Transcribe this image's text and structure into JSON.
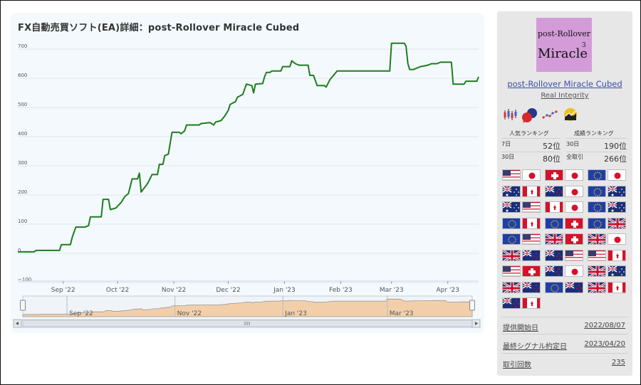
{
  "chart_title": "FX自動売買ソフト(EA)詳細：post-Rollover Miracle Cubed",
  "chart_data": {
    "type": "line",
    "title": "FX自動売買ソフト(EA)詳細：post-Rollover Miracle Cubed",
    "y_ticks": [
      "700",
      "600",
      "500",
      "400",
      "300",
      "200",
      "100",
      "0",
      "−100"
    ],
    "ylim": [
      -100,
      730
    ],
    "x_ticks": [
      "Sep '22",
      "Oct '22",
      "Nov '22",
      "Dec '22",
      "Jan '23",
      "Feb '23",
      "Mar '23",
      "Apr '23"
    ],
    "navigator_ticks": [
      "Sep '22",
      "Nov '22",
      "Jan '23",
      "Mar '23"
    ],
    "grid": true,
    "series": [
      {
        "color": "#1e7d1e",
        "points": [
          [
            "2022-08-07",
            5
          ],
          [
            "2022-08-16",
            5
          ],
          [
            "2022-08-17",
            10
          ],
          [
            "2022-08-30",
            10
          ],
          [
            "2022-08-31",
            30
          ],
          [
            "2022-09-05",
            30
          ],
          [
            "2022-09-06",
            55
          ],
          [
            "2022-09-08",
            90
          ],
          [
            "2022-09-13",
            90
          ],
          [
            "2022-09-15",
            95
          ],
          [
            "2022-09-16",
            125
          ],
          [
            "2022-09-22",
            125
          ],
          [
            "2022-09-23",
            185
          ],
          [
            "2022-09-26",
            185
          ],
          [
            "2022-09-27",
            150
          ],
          [
            "2022-09-30",
            155
          ],
          [
            "2022-10-03",
            175
          ],
          [
            "2022-10-05",
            195
          ],
          [
            "2022-10-07",
            205
          ],
          [
            "2022-10-09",
            255
          ],
          [
            "2022-10-12",
            255
          ],
          [
            "2022-10-13",
            275
          ],
          [
            "2022-10-14",
            210
          ],
          [
            "2022-10-17",
            235
          ],
          [
            "2022-10-18",
            245
          ],
          [
            "2022-10-20",
            270
          ],
          [
            "2022-10-23",
            270
          ],
          [
            "2022-10-24",
            305
          ],
          [
            "2022-10-26",
            305
          ],
          [
            "2022-10-27",
            335
          ],
          [
            "2022-10-29",
            340
          ],
          [
            "2022-10-31",
            415
          ],
          [
            "2022-11-04",
            415
          ],
          [
            "2022-11-05",
            410
          ],
          [
            "2022-11-07",
            420
          ],
          [
            "2022-11-08",
            440
          ],
          [
            "2022-11-15",
            440
          ],
          [
            "2022-11-16",
            445
          ],
          [
            "2022-11-21",
            448
          ],
          [
            "2022-11-23",
            440
          ],
          [
            "2022-11-24",
            450
          ],
          [
            "2022-11-27",
            455
          ],
          [
            "2022-11-29",
            470
          ],
          [
            "2022-12-01",
            490
          ],
          [
            "2022-12-02",
            510
          ],
          [
            "2022-12-05",
            520
          ],
          [
            "2022-12-06",
            535
          ],
          [
            "2022-12-09",
            545
          ],
          [
            "2022-12-11",
            580
          ],
          [
            "2022-12-14",
            575
          ],
          [
            "2022-12-15",
            550
          ],
          [
            "2022-12-16",
            580
          ],
          [
            "2022-12-20",
            582
          ],
          [
            "2022-12-21",
            605
          ],
          [
            "2022-12-22",
            620
          ],
          [
            "2022-12-24",
            620
          ],
          [
            "2022-12-25",
            625
          ],
          [
            "2022-12-30",
            625
          ],
          [
            "2022-12-31",
            640
          ],
          [
            "2023-01-04",
            640
          ],
          [
            "2023-01-05",
            660
          ],
          [
            "2023-01-06",
            655
          ],
          [
            "2023-01-07",
            650
          ],
          [
            "2023-01-09",
            645
          ],
          [
            "2023-01-14",
            645
          ],
          [
            "2023-01-15",
            610
          ],
          [
            "2023-01-17",
            610
          ],
          [
            "2023-01-19",
            575
          ],
          [
            "2023-01-23",
            575
          ],
          [
            "2023-01-24",
            570
          ],
          [
            "2023-01-26",
            595
          ],
          [
            "2023-01-30",
            625
          ],
          [
            "2023-02-28",
            625
          ],
          [
            "2023-03-01",
            720
          ],
          [
            "2023-03-08",
            720
          ],
          [
            "2023-03-09",
            710
          ],
          [
            "2023-03-10",
            650
          ],
          [
            "2023-03-11",
            630
          ],
          [
            "2023-03-13",
            630
          ],
          [
            "2023-03-17",
            640
          ],
          [
            "2023-03-21",
            645
          ],
          [
            "2023-03-23",
            650
          ],
          [
            "2023-03-26",
            650
          ],
          [
            "2023-03-28",
            655
          ],
          [
            "2023-04-03",
            655
          ],
          [
            "2023-04-04",
            580
          ],
          [
            "2023-04-10",
            580
          ],
          [
            "2023-04-11",
            590
          ],
          [
            "2023-04-17",
            590
          ],
          [
            "2023-04-18",
            605
          ]
        ]
      }
    ]
  },
  "sidebar": {
    "logo": {
      "line1": "post-Rollover",
      "line2": "Miracle",
      "sup": "3"
    },
    "ea_name": "post-Rollover Miracle Cubed",
    "developer": "Real Integrity",
    "icons": [
      "candlestick-icon",
      "chat-bubbles-icon",
      "dot-line-icon",
      "wave-sun-icon"
    ],
    "popularity": {
      "title": "人気ランキング",
      "rows": [
        {
          "k": "7日",
          "v": "52位"
        },
        {
          "k": "30日",
          "v": "80位"
        }
      ]
    },
    "performance": {
      "title": "成績ランキング",
      "rows": [
        {
          "k": "30日",
          "v": "190位"
        },
        {
          "k": "全取引",
          "v": "266位"
        }
      ]
    },
    "pairs": [
      [
        "US",
        "JP"
      ],
      [
        "CH",
        "JP"
      ],
      [
        "EU",
        "JP"
      ],
      [
        "AU",
        "CA"
      ],
      [
        "NZ",
        "JP"
      ],
      [
        "EU",
        "AU"
      ],
      [
        "AU",
        "US"
      ],
      [
        "CA",
        "JP"
      ],
      [
        "EU",
        "AU"
      ],
      [
        "EU",
        "CA"
      ],
      [
        "EU",
        "CH"
      ],
      [
        "EU",
        "GB"
      ],
      [
        "EU",
        "US"
      ],
      [
        "GB",
        "CH"
      ],
      [
        "GB",
        "JP"
      ],
      [
        "GB",
        "NZ"
      ],
      [
        "NZ",
        "US"
      ],
      [
        "US",
        "CA"
      ],
      [
        "US",
        "CH"
      ],
      [
        "NZ",
        "JP"
      ],
      [
        "GB",
        "AU"
      ],
      [
        "GB",
        "NZ"
      ],
      [
        "EU",
        "NZ"
      ],
      [
        "GB",
        "CA"
      ],
      [
        "NZ",
        "CA"
      ]
    ],
    "info": [
      {
        "k": "提供開始日",
        "v": "2022/08/07"
      },
      {
        "k": "最終シグナル約定日",
        "v": "2023/04/20"
      },
      {
        "k": "取引回数",
        "v": "235"
      }
    ]
  }
}
